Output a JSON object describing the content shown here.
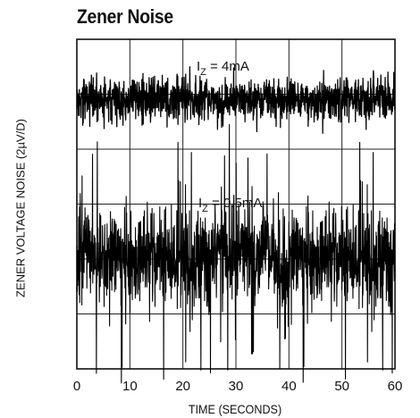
{
  "chart_data": {
    "type": "line",
    "title": "Zener Noise",
    "xlabel": "TIME (SECONDS)",
    "ylabel": "ZENER VOLTAGE NOISE (2µV/D)",
    "xlim": [
      0,
      60
    ],
    "xticks": [
      "0",
      "10",
      "20",
      "30",
      "40",
      "50",
      "60"
    ],
    "y_units_per_division": 2,
    "y_divisions": 6,
    "grid": true,
    "series": [
      {
        "label_main": "I",
        "label_sub": "Z",
        "label_value": " = 4mA",
        "baseline_division": 4.9,
        "peak_to_peak_uV": 2.4
      },
      {
        "label_main": "I",
        "label_sub": "Z",
        "label_value": " = 0.5mA",
        "baseline_division": 1.95,
        "peak_to_peak_uV": 6.0
      }
    ]
  }
}
